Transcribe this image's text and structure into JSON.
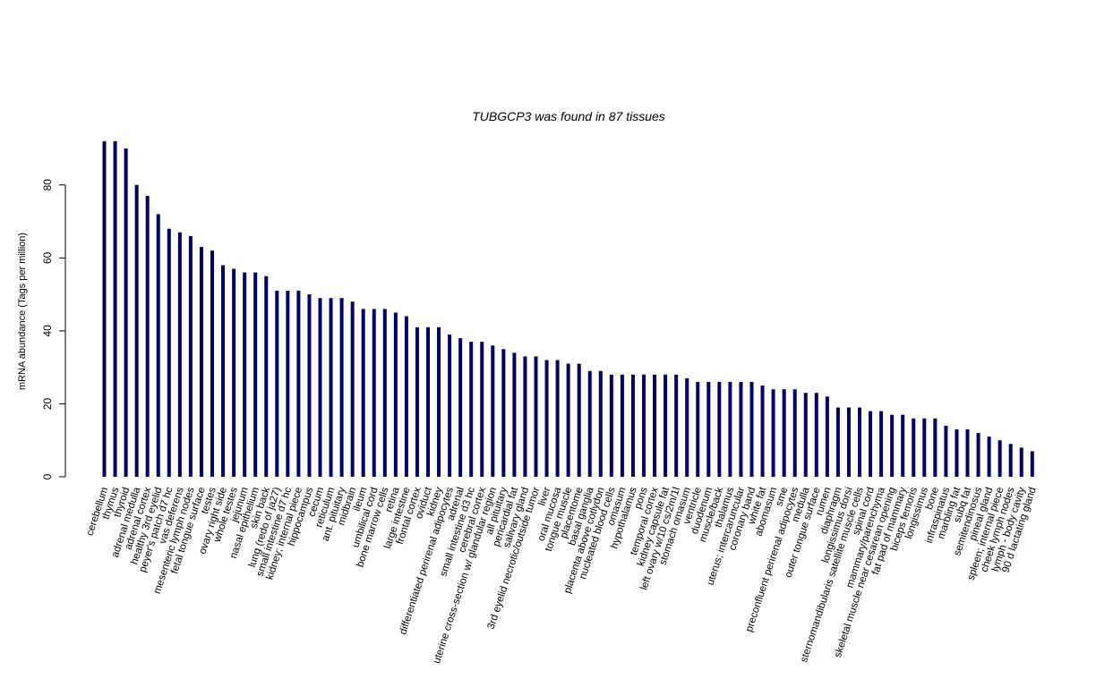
{
  "chart_data": {
    "type": "bar",
    "title": "TUBGCP3  was found in  87  tissues",
    "xlabel": "",
    "ylabel": "mRNA abundance (Tags per million)",
    "ylim": [
      0,
      92
    ],
    "yticks": [
      0,
      20,
      40,
      60,
      80
    ],
    "bar_color": "#000066",
    "grid": false,
    "categories": [
      "cerebellum",
      "thymus",
      "thyroid",
      "adrenal medulla",
      "adrenal cortex",
      "healthy 3rd eyelid",
      "peyer's patch d7 hc",
      "vas deferens",
      "mesenteric lymph nodes",
      "fetal tongue surface",
      "testes",
      "ovary right side",
      "whole testes",
      "jejunum",
      "nasal epithelium",
      "skin back",
      "lung (redo of ja27)",
      "small intestine d7 hc",
      "kidney; internal piece",
      "hippocampus",
      "cecum",
      "reticulum",
      "ant. pituitary",
      "midbrain",
      "ileum",
      "umbilical cord",
      "bone marrow cells",
      "retina",
      "large intestine",
      "frontal cortex",
      "oviduct",
      "kidney",
      "differentiated perirenal adipocytes",
      "adrenal",
      "small intestine d3 hc",
      "cerebral cortex",
      "uterine cross-section w/ glandular region",
      "all pituitary",
      "pericardial fat",
      "salivary gland",
      "3rd eyelid necrotic/outside tumor",
      "liver",
      "oral mucosa",
      "tongue muscle",
      "placentome",
      "basal ganglia",
      "placenta above cotlydon",
      "nucleated blood cells",
      "omasum",
      "hypothalamus",
      "pons",
      "temporal cortex",
      "kidney capsule fat",
      "left ovary w/10 cs/2m/1l",
      "stomach omasum",
      "ventricle",
      "duodenum",
      "muscle/back",
      "thalamus",
      "uterus; intercaruncular",
      "coronary band",
      "white fat",
      "abomasum",
      "sme",
      "preconfluent perirenal adipocytes",
      "medulla",
      "outer tongue surface",
      "rumen",
      "diaphragm",
      "longissimus dorsi",
      "sternomandibularis satellite muscle cells",
      "spinal cord",
      "mammary/parenchyma",
      "skeletal muscle near cesarean opening",
      "fat pad of mammary",
      "biceps femoris",
      "longissimus",
      "bone",
      "infraspinatus",
      "marbling fat",
      "subq fat",
      "semitendinosus",
      "pineal gland",
      "spleen; internal piece",
      "cheek lymph nodes",
      "lymph - body cavity",
      "90 d lactating gland"
    ],
    "values": [
      92,
      92,
      90,
      80,
      77,
      72,
      68,
      67,
      66,
      63,
      62,
      58,
      57,
      56,
      56,
      55,
      51,
      51,
      51,
      50,
      49,
      49,
      49,
      48,
      46,
      46,
      46,
      45,
      44,
      41,
      41,
      41,
      39,
      38,
      37,
      37,
      36,
      35,
      34,
      33,
      33,
      32,
      32,
      31,
      31,
      29,
      29,
      28,
      28,
      28,
      28,
      28,
      28,
      28,
      27,
      26,
      26,
      26,
      26,
      26,
      26,
      25,
      24,
      24,
      24,
      23,
      23,
      22,
      19,
      19,
      19,
      18,
      18,
      17,
      17,
      16,
      16,
      16,
      14,
      13,
      13,
      12,
      11,
      10,
      9,
      8,
      7
    ]
  }
}
